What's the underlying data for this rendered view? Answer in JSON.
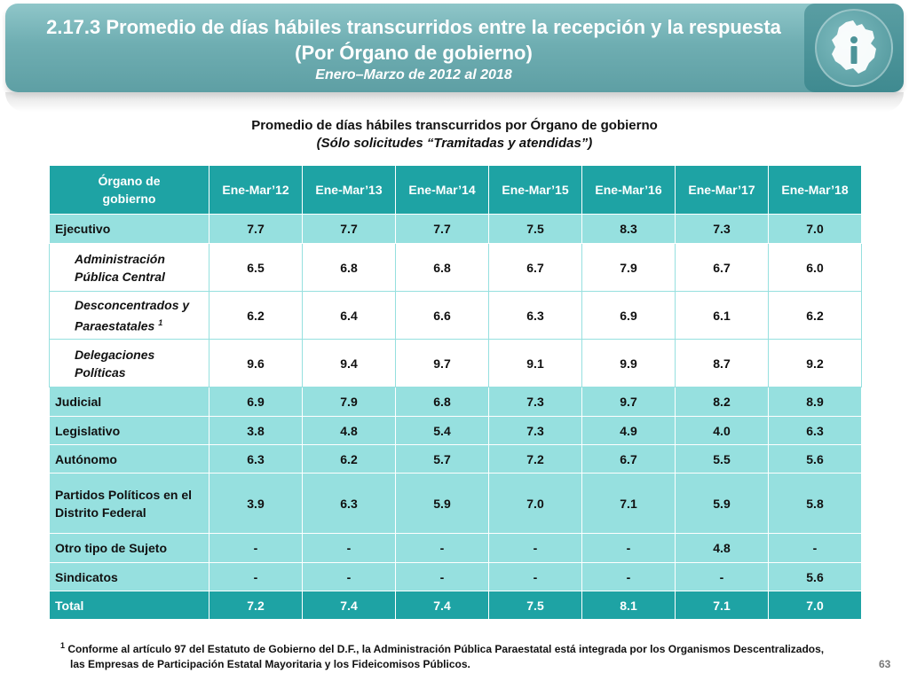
{
  "header": {
    "title_line1": "2.17.3 Promedio de días hábiles transcurridos entre la recepción y la respuesta",
    "title_line2": "(Por Órgano de gobierno)",
    "title_line3": "Enero–Marzo de 2012 al 2018",
    "logo_icon": "mexico-city-map-logo-icon"
  },
  "subtitle": {
    "line1": "Promedio de días hábiles transcurridos por Órgano de gobierno",
    "line2": "(Sólo solicitudes “Tramitadas y atendidas”)"
  },
  "table": {
    "header_line1": "Órgano de",
    "header_line2": "gobierno",
    "columns": [
      "Ene-Mar’12",
      "Ene-Mar’13",
      "Ene-Mar’14",
      "Ene-Mar’15",
      "Ene-Mar’16",
      "Ene-Mar’17",
      "Ene-Mar’18"
    ],
    "rows": {
      "ejecutivo": {
        "l1": "Ejecutivo",
        "v": [
          "7.7",
          "7.7",
          "7.7",
          "7.5",
          "8.3",
          "7.3",
          "7.0"
        ]
      },
      "apc": {
        "l1": "Administración",
        "l2": "Pública Central",
        "v": [
          "6.5",
          "6.8",
          "6.8",
          "6.7",
          "7.9",
          "6.7",
          "6.0"
        ]
      },
      "desc": {
        "l1": "Desconcentrados y",
        "l2": "Paraestatales",
        "sup": "1",
        "v": [
          "6.2",
          "6.4",
          "6.6",
          "6.3",
          "6.9",
          "6.1",
          "6.2"
        ]
      },
      "deleg": {
        "l1": "Delegaciones",
        "l2": "Políticas",
        "v": [
          "9.6",
          "9.4",
          "9.7",
          "9.1",
          "9.9",
          "8.7",
          "9.2"
        ]
      },
      "judicial": {
        "l1": "Judicial",
        "v": [
          "6.9",
          "7.9",
          "6.8",
          "7.3",
          "9.7",
          "8.2",
          "8.9"
        ]
      },
      "legislativo": {
        "l1": "Legislativo",
        "v": [
          "3.8",
          "4.8",
          "5.4",
          "7.3",
          "4.9",
          "4.0",
          "6.3"
        ]
      },
      "autonomo": {
        "l1": "Autónomo",
        "v": [
          "6.3",
          "6.2",
          "5.7",
          "7.2",
          "6.7",
          "5.5",
          "5.6"
        ]
      },
      "partidos": {
        "l1": "Partidos Políticos en el",
        "l2": "Distrito Federal",
        "v": [
          "3.9",
          "6.3",
          "5.9",
          "7.0",
          "7.1",
          "5.9",
          "5.8"
        ]
      },
      "otro": {
        "l1": "Otro tipo de Sujeto",
        "v": [
          "-",
          "-",
          "-",
          "-",
          "-",
          "4.8",
          "-"
        ]
      },
      "sindicatos": {
        "l1": "Sindicatos",
        "v": [
          "-",
          "-",
          "-",
          "-",
          "-",
          "-",
          "5.6"
        ]
      },
      "total": {
        "l1": "Total",
        "v": [
          "7.2",
          "7.4",
          "7.4",
          "7.5",
          "8.1",
          "7.1",
          "7.0"
        ]
      }
    }
  },
  "footnote": {
    "mark": "1",
    "line1": "Conforme al artículo 97 del Estatuto de Gobierno del D.F., la Administración Pública Paraestatal está integrada por los Organismos Descentralizados,",
    "line2": "las Empresas de Participación Estatal Mayoritaria y los Fideicomisos Públicos."
  },
  "page_number": "63",
  "colors": {
    "header_teal": "#6faeb2",
    "table_header": "#1ea3a4",
    "row_light_teal": "#96e0df"
  }
}
